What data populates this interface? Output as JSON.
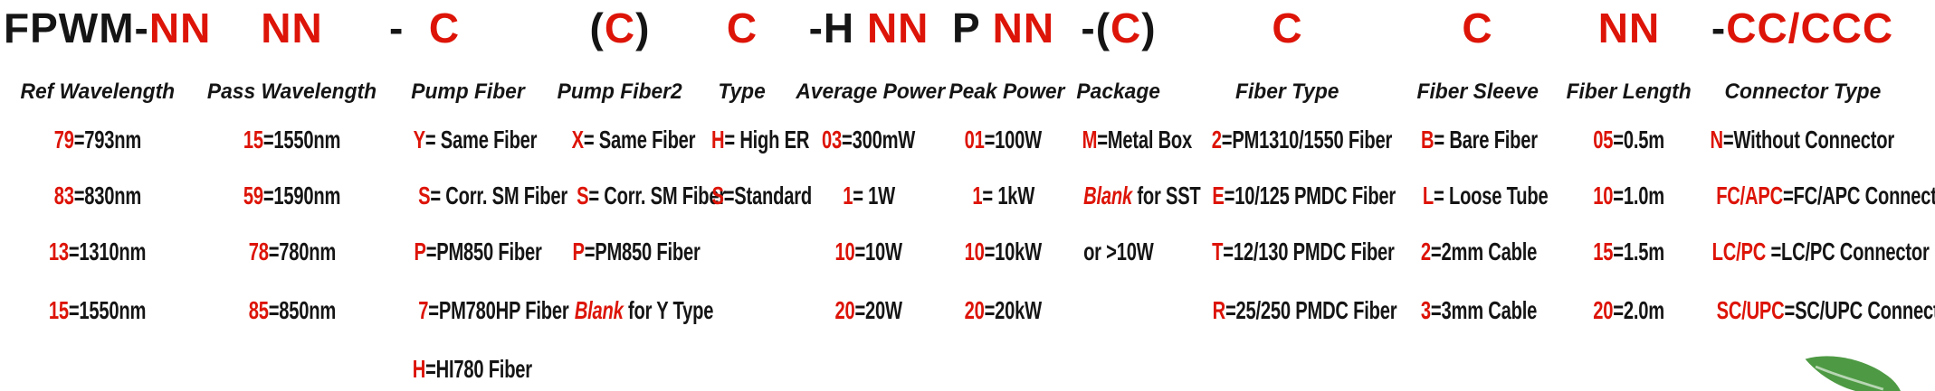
{
  "colors": {
    "code_red": "#dd1408",
    "text_black": "#151515",
    "leaf_green": "#4e9a44"
  },
  "icons": {
    "bottom_right": "leaf-icon"
  },
  "part_number": {
    "prefix": "FPWM-",
    "full_code": "FPWM-NN NN - C (C) C -H NN P NN -(C) C C NN -CC/CCC",
    "columns": [
      {
        "header": "Ref Wavelength",
        "code": [
          {
            "t": "FPWM-"
          },
          {
            "t": "NN",
            "red": true
          }
        ],
        "values": [
          [
            {
              "t": "79",
              "red": true
            },
            {
              "t": "=793nm"
            }
          ],
          [
            {
              "t": "83",
              "red": true
            },
            {
              "t": "=830nm"
            }
          ],
          [
            {
              "t": "13",
              "red": true
            },
            {
              "t": "=1310nm"
            }
          ],
          [
            {
              "t": "15",
              "red": true
            },
            {
              "t": "=1550nm"
            }
          ]
        ]
      },
      {
        "header": "Pass Wavelength",
        "code": [
          {
            "t": "NN",
            "red": true
          }
        ],
        "values": [
          [
            {
              "t": "15",
              "red": true
            },
            {
              "t": "=1550nm"
            }
          ],
          [
            {
              "t": "59",
              "red": true
            },
            {
              "t": "=1590nm"
            }
          ],
          [
            {
              "t": "78",
              "red": true
            },
            {
              "t": "=780nm"
            }
          ],
          [
            {
              "t": "85",
              "red": true
            },
            {
              "t": "=850nm"
            }
          ]
        ]
      },
      {
        "header": "Pump Fiber",
        "code": [
          {
            "t": "-  "
          },
          {
            "t": "C",
            "red": true
          }
        ],
        "values": [
          [
            {
              "t": "Y",
              "red": true
            },
            {
              "t": "= Same Fiber"
            }
          ],
          [
            {
              "t": "S",
              "red": true
            },
            {
              "t": "= Corr. SM Fiber"
            }
          ],
          [
            {
              "t": "P",
              "red": true
            },
            {
              "t": "=PM850 Fiber"
            }
          ],
          [
            {
              "t": "7",
              "red": true
            },
            {
              "t": "=PM780HP Fiber"
            }
          ],
          [
            {
              "t": "H",
              "red": true
            },
            {
              "t": "=HI780 Fiber"
            }
          ]
        ]
      },
      {
        "header": "Pump Fiber2",
        "code": [
          {
            "t": "("
          },
          {
            "t": "C",
            "red": true
          },
          {
            "t": ")"
          }
        ],
        "values": [
          [
            {
              "t": "X",
              "red": true
            },
            {
              "t": "= Same Fiber"
            }
          ],
          [
            {
              "t": "S",
              "red": true
            },
            {
              "t": "= Corr. SM Fiber"
            }
          ],
          [
            {
              "t": "P",
              "red": true
            },
            {
              "t": "=PM850 Fiber"
            }
          ],
          [
            {
              "t": "Blank",
              "red": true,
              "italic": true
            },
            {
              "t": " for Y Type"
            }
          ]
        ]
      },
      {
        "header": "Type",
        "code": [
          {
            "t": "C",
            "red": true
          }
        ],
        "values": [
          [
            {
              "t": "H",
              "red": true
            },
            {
              "t": "= High ER"
            }
          ],
          [
            {
              "t": "S",
              "red": true
            },
            {
              "t": "=Standard"
            }
          ]
        ]
      },
      {
        "header": "Average Power",
        "code": [
          {
            "t": "-H "
          },
          {
            "t": "NN",
            "red": true
          }
        ],
        "values": [
          [
            {
              "t": "03",
              "red": true
            },
            {
              "t": "=300mW"
            }
          ],
          [
            {
              "t": "1",
              "red": true
            },
            {
              "t": "= 1W"
            }
          ],
          [
            {
              "t": "10",
              "red": true
            },
            {
              "t": "=10W"
            }
          ],
          [
            {
              "t": "20",
              "red": true
            },
            {
              "t": "=20W"
            }
          ]
        ]
      },
      {
        "header": "Peak Power",
        "code": [
          {
            "t": "P "
          },
          {
            "t": "NN",
            "red": true
          }
        ],
        "values": [
          [
            {
              "t": "01",
              "red": true
            },
            {
              "t": "=100W"
            }
          ],
          [
            {
              "t": "1",
              "red": true
            },
            {
              "t": "= 1kW"
            }
          ],
          [
            {
              "t": "10",
              "red": true
            },
            {
              "t": "=10kW"
            }
          ],
          [
            {
              "t": "20",
              "red": true
            },
            {
              "t": "=20kW"
            }
          ]
        ]
      },
      {
        "header": "Package",
        "code": [
          {
            "t": "-("
          },
          {
            "t": "C",
            "red": true
          },
          {
            "t": ")"
          }
        ],
        "values": [
          [
            {
              "t": "M",
              "red": true
            },
            {
              "t": "=Metal Box"
            }
          ],
          [
            {
              "t": "Blank",
              "red": true,
              "italic": true
            },
            {
              "t": " for SST"
            }
          ],
          [
            {
              "t": "or >10W"
            }
          ]
        ]
      },
      {
        "header": "Fiber Type",
        "code": [
          {
            "t": "C",
            "red": true
          }
        ],
        "values": [
          [
            {
              "t": "2",
              "red": true
            },
            {
              "t": "=PM1310/1550 Fiber"
            }
          ],
          [
            {
              "t": "E",
              "red": true
            },
            {
              "t": "=10/125 PMDC Fiber"
            }
          ],
          [
            {
              "t": "T",
              "red": true
            },
            {
              "t": "=12/130 PMDC Fiber"
            }
          ],
          [
            {
              "t": "R",
              "red": true
            },
            {
              "t": "=25/250 PMDC Fiber"
            }
          ]
        ]
      },
      {
        "header": "Fiber Sleeve",
        "code": [
          {
            "t": "C",
            "red": true
          }
        ],
        "values": [
          [
            {
              "t": "B",
              "red": true
            },
            {
              "t": "= Bare Fiber"
            }
          ],
          [
            {
              "t": "L",
              "red": true
            },
            {
              "t": "= Loose Tube"
            }
          ],
          [
            {
              "t": "2",
              "red": true
            },
            {
              "t": "=2mm Cable"
            }
          ],
          [
            {
              "t": "3",
              "red": true
            },
            {
              "t": "=3mm Cable"
            }
          ]
        ]
      },
      {
        "header": "Fiber Length",
        "code": [
          {
            "t": "NN",
            "red": true
          }
        ],
        "values": [
          [
            {
              "t": "05",
              "red": true
            },
            {
              "t": "=0.5m"
            }
          ],
          [
            {
              "t": "10",
              "red": true
            },
            {
              "t": "=1.0m"
            }
          ],
          [
            {
              "t": "15",
              "red": true
            },
            {
              "t": "=1.5m"
            }
          ],
          [
            {
              "t": "20",
              "red": true
            },
            {
              "t": "=2.0m"
            }
          ]
        ]
      },
      {
        "header": "Connector Type",
        "code": [
          {
            "t": "-"
          },
          {
            "t": "CC/CCC",
            "red": true
          }
        ],
        "values": [
          [
            {
              "t": "N",
              "red": true
            },
            {
              "t": "=Without Connector"
            }
          ],
          [
            {
              "t": "FC/APC",
              "red": true
            },
            {
              "t": "=FC/APC Connector"
            }
          ],
          [
            {
              "t": "LC/PC ",
              "red": true
            },
            {
              "t": "=LC/PC Connector"
            }
          ],
          [
            {
              "t": "SC/UPC",
              "red": true
            },
            {
              "t": "=SC/UPC Connector"
            }
          ]
        ]
      }
    ]
  }
}
